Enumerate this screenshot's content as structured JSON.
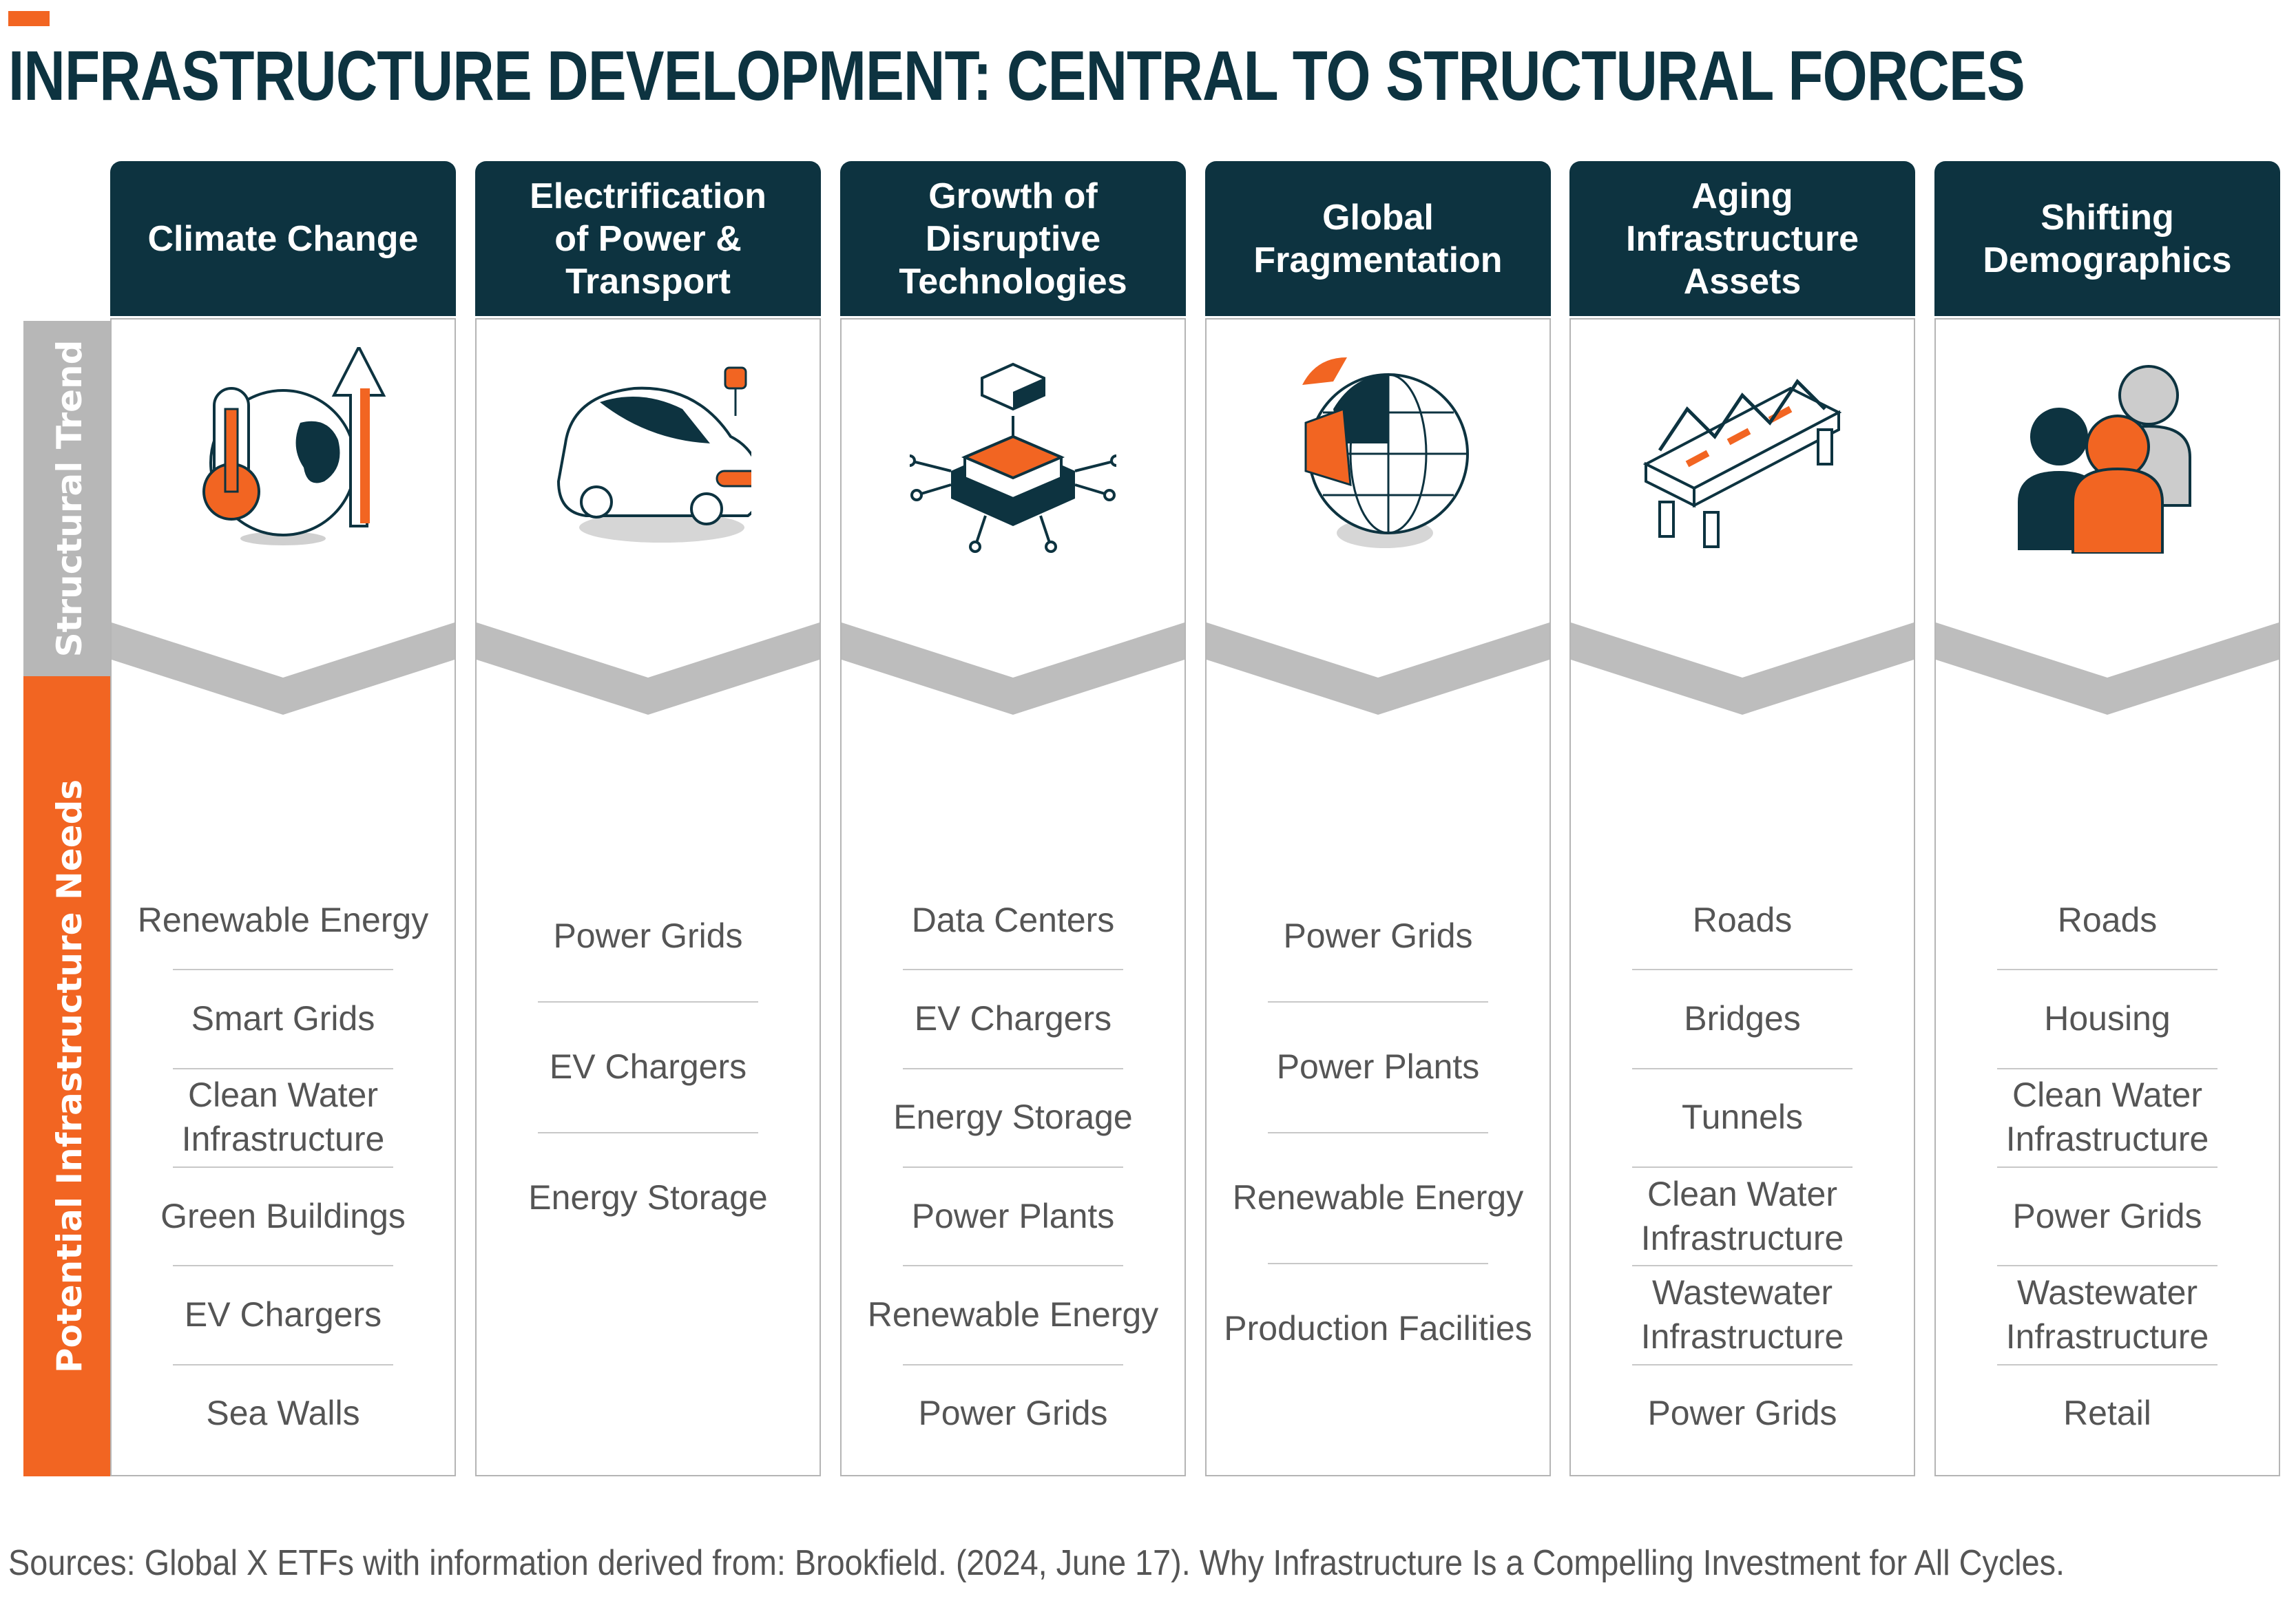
{
  "title": "INFRASTRUCTURE DEVELOPMENT: CENTRAL TO STRUCTURAL FORCES",
  "side_labels": {
    "structural_trend": "Structural Trend",
    "infrastructure_needs": "Potential Infrastructure Needs"
  },
  "colors": {
    "navy": "#0d3340",
    "orange": "#f26522",
    "gray": "#b7b7b7"
  },
  "columns": [
    {
      "header": "Climate Change",
      "icon": "thermometer-globe-arrow-icon",
      "needs": [
        "Renewable Energy",
        "Smart Grids",
        "Clean Water\nInfrastructure",
        "Green Buildings",
        "EV Chargers",
        "Sea Walls"
      ]
    },
    {
      "header": "Electrification\nof Power &\nTransport",
      "icon": "electric-car-plug-icon",
      "needs": [
        "Power Grids",
        "EV Chargers",
        "Energy Storage"
      ]
    },
    {
      "header": "Growth of\nDisruptive\nTechnologies",
      "icon": "microchip-icon",
      "needs": [
        "Data Centers",
        "EV Chargers",
        "Energy Storage",
        "Power Plants",
        "Renewable Energy",
        "Power Grids"
      ]
    },
    {
      "header": "Global\nFragmentation",
      "icon": "fragmented-globe-icon",
      "needs": [
        "Power Grids",
        "Power Plants",
        "Renewable Energy",
        "Production Facilities"
      ]
    },
    {
      "header": "Aging\nInfrastructure\nAssets",
      "icon": "truss-bridge-icon",
      "needs": [
        "Roads",
        "Bridges",
        "Tunnels",
        "Clean Water\nInfrastructure",
        "Wastewater\nInfrastructure",
        "Power Grids"
      ]
    },
    {
      "header": "Shifting\nDemographics",
      "icon": "people-group-icon",
      "needs": [
        "Roads",
        "Housing",
        "Clean Water\nInfrastructure",
        "Power Grids",
        "Wastewater\nInfrastructure",
        "Retail"
      ]
    }
  ],
  "sources": "Sources: Global X ETFs with information derived from: Brookfield. (2024, June 17). Why Infrastructure Is a Compelling Investment for All Cycles."
}
